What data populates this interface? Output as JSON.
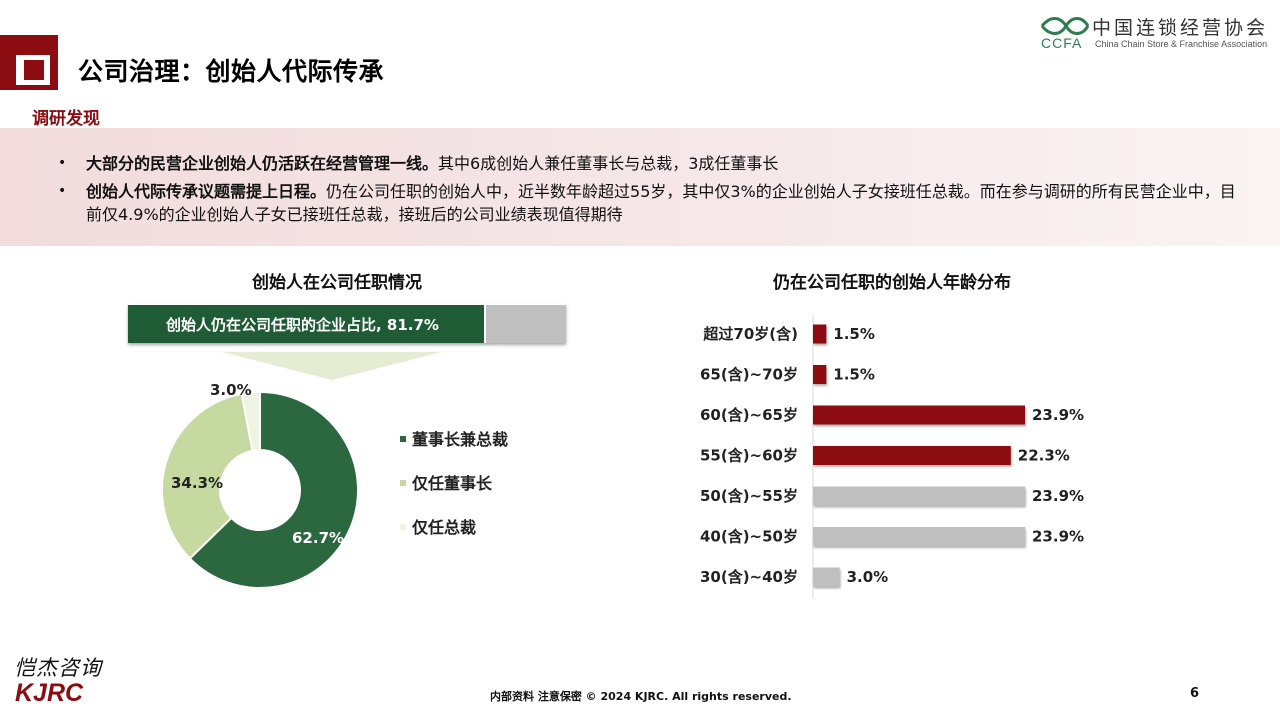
{
  "header": {
    "title": "公司治理：创始人代际传承",
    "logo": {
      "cn": "中国连锁经营协会",
      "en": "China Chain Store & Franchise Association",
      "abbr": "CCFA",
      "color": "#2e7d4f"
    }
  },
  "findings": {
    "label": "调研发现",
    "items": [
      {
        "bold": "大部分的民营企业创始人仍活跃在经营管理一线。",
        "text": "其中6成创始人兼任董事长与总裁，3成任董事长"
      },
      {
        "bold": "创始人代际传承议题需提上日程。",
        "text": "仍在公司任职的创始人中，近半数年龄超过55岁，其中仅3%的企业创始人子女接班任总裁。而在参与调研的所有民营企业中，目前仅4.9%的企业创始人子女已接班任总裁，接班后的公司业绩表现值得期待"
      }
    ]
  },
  "left_chart": {
    "title": "创始人在公司任职情况",
    "banner": {
      "text": "创始人仍在公司任职的企业占比, 81.7%",
      "value": 81.7
    }
  },
  "right_chart": {
    "title": "仍在公司任职的创始人年龄分布"
  },
  "chart_data": [
    {
      "type": "pie",
      "donut": true,
      "categories": [
        "董事长兼总裁",
        "仅任董事长",
        "仅任总裁"
      ],
      "values": [
        62.7,
        34.3,
        3.0
      ],
      "labels": [
        "62.7%",
        "34.3%",
        "3.0%"
      ],
      "colors": [
        "#2b6840",
        "#c5d9a1",
        "#eff3e1"
      ],
      "legend": "right"
    },
    {
      "type": "bar",
      "orientation": "horizontal",
      "categories": [
        "超过70岁(含)",
        "65(含)~70岁",
        "60(含)~65岁",
        "55(含)~60岁",
        "50(含)~55岁",
        "40(含)~50岁",
        "30(含)~40岁"
      ],
      "values": [
        1.5,
        1.5,
        23.9,
        22.3,
        23.9,
        23.9,
        3.0
      ],
      "labels": [
        "1.5%",
        "1.5%",
        "23.9%",
        "22.3%",
        "23.9%",
        "23.9%",
        "3.0%"
      ],
      "colors": [
        "#8b0d12",
        "#8b0d12",
        "#8b0d12",
        "#8b0d12",
        "#bfbfbf",
        "#bfbfbf",
        "#bfbfbf"
      ],
      "xlim": [
        0,
        23.9
      ]
    }
  ],
  "footer": {
    "brand_script": "恺杰咨询",
    "brand": "KJRC",
    "note": "内部资料 注意保密 © 2024 KJRC. All rights reserved.",
    "page": "6"
  }
}
